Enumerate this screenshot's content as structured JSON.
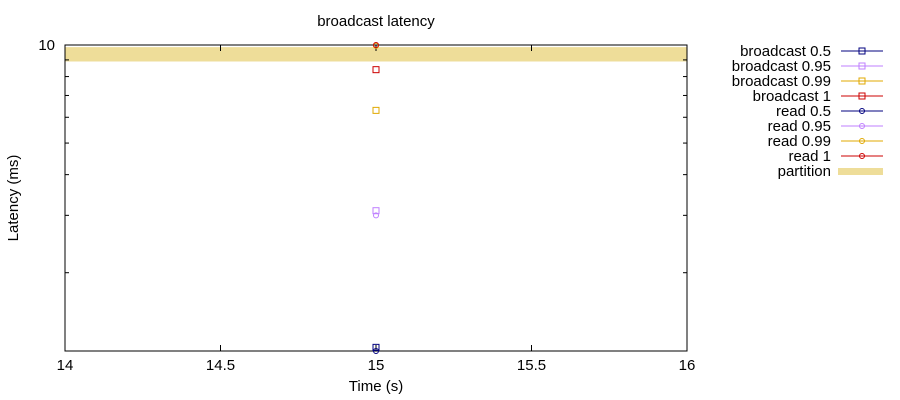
{
  "chart_data": {
    "type": "scatter",
    "title": "broadcast latency",
    "xlabel": "Time (s)",
    "ylabel": "Latency (ms)",
    "xlim": [
      14,
      16
    ],
    "ylim": [
      1.15,
      10
    ],
    "yscale": "log",
    "xticks": [
      "14",
      "14.5",
      "15",
      "15.5",
      "16"
    ],
    "ytick_labels": [
      {
        "value": 10,
        "label": "10"
      }
    ],
    "y_minor_ticks": [
      2,
      3,
      4,
      5,
      6,
      7,
      8,
      9
    ],
    "grid": false,
    "legend_position": "outside-right",
    "series": [
      {
        "name": "broadcast 0.5",
        "marker": "square",
        "color": "#00007f",
        "points": [
          [
            15,
            1.18
          ]
        ]
      },
      {
        "name": "broadcast 0.95",
        "marker": "square",
        "color": "#bf7fff",
        "points": [
          [
            15,
            3.1
          ]
        ]
      },
      {
        "name": "broadcast 0.99",
        "marker": "square",
        "color": "#e0a800",
        "points": [
          [
            15,
            6.3
          ]
        ]
      },
      {
        "name": "broadcast 1",
        "marker": "square",
        "color": "#cc0000",
        "points": [
          [
            15,
            8.4
          ]
        ]
      },
      {
        "name": "read 0.5",
        "marker": "circle",
        "color": "#00007f",
        "points": [
          [
            15,
            1.15
          ]
        ]
      },
      {
        "name": "read 0.95",
        "marker": "circle",
        "color": "#bf7fff",
        "points": [
          [
            15,
            3.0
          ]
        ]
      },
      {
        "name": "read 0.99",
        "marker": "circle",
        "color": "#e0a800",
        "points": [
          [
            15,
            9.95
          ]
        ]
      },
      {
        "name": "read 1",
        "marker": "circle",
        "color": "#cc0000",
        "points": [
          [
            15,
            10.0
          ]
        ]
      }
    ],
    "partition": {
      "name": "partition",
      "color": "#eedd99",
      "x_range": [
        14,
        16
      ],
      "y_range": [
        8.9,
        9.85
      ]
    }
  }
}
